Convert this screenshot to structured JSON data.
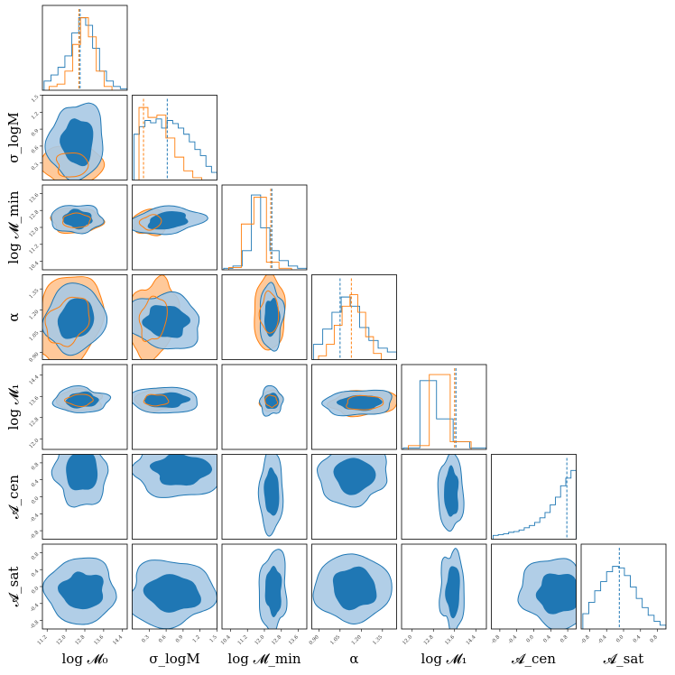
{
  "chart_data": {
    "type": "corner",
    "colors": {
      "blue": "#1f77b4",
      "blue_light": "#a9c9e4",
      "orange": "#ff7f0e",
      "orange_light": "#ffc99a"
    },
    "params": [
      {
        "label": "log 𝓜₀",
        "range": [
          11.0,
          14.6
        ],
        "ticks": [
          "11.2",
          "12.0",
          "12.8",
          "13.6",
          "14.4"
        ]
      },
      {
        "label": "σ_logM",
        "range": [
          0.0,
          1.5
        ],
        "ticks": [
          "0.3",
          "0.6",
          "0.9",
          "1.2",
          "1.5"
        ]
      },
      {
        "label": "log 𝓜_min",
        "range": [
          10.0,
          14.0
        ],
        "ticks": [
          "10.4",
          "11.2",
          "12.0",
          "12.8",
          "13.6"
        ]
      },
      {
        "label": "α",
        "range": [
          0.85,
          1.45
        ],
        "ticks": [
          "0.90",
          "1.05",
          "1.20",
          "1.35"
        ]
      },
      {
        "label": "log 𝓜₁",
        "range": [
          11.6,
          14.8
        ],
        "ticks": [
          "12.0",
          "12.8",
          "13.6",
          "14.4"
        ]
      },
      {
        "label": "𝓐_cen",
        "range": [
          -1.0,
          1.0
        ],
        "ticks": [
          "-0.8",
          "-0.4",
          "0.0",
          "0.4",
          "0.8"
        ]
      },
      {
        "label": "𝓐_sat",
        "range": [
          -1.0,
          1.0
        ],
        "ticks": [
          "-0.8",
          "-0.4",
          "0.0",
          "0.4",
          "0.8"
        ]
      }
    ],
    "medians": {
      "blue": [
        12.6,
        0.62,
        12.35,
        1.05,
        13.65,
        0.78,
        -0.1
      ],
      "orange": [
        12.55,
        0.2,
        12.3,
        1.13,
        13.6,
        null,
        null
      ]
    },
    "histograms": {
      "blue": [
        [
          0.12,
          0.2,
          0.3,
          0.45,
          0.75,
          0.95,
          0.85,
          0.55,
          0.25,
          0.12,
          0.05,
          0.02
        ],
        [
          0.6,
          0.7,
          0.78,
          0.75,
          0.8,
          0.68,
          0.78,
          0.74,
          0.68,
          0.6,
          0.5,
          0.4,
          0.32,
          0.18,
          0.1
        ],
        [
          0.02,
          0.05,
          0.25,
          0.98,
          0.55,
          0.25,
          0.12,
          0.05,
          0.02
        ],
        [
          0.2,
          0.4,
          0.62,
          0.82,
          0.7,
          0.42,
          0.25,
          0.15,
          0.1
        ],
        [
          0.02,
          0.9,
          0.4,
          0.1,
          0.02
        ],
        [
          0.05,
          0.06,
          0.07,
          0.09,
          0.1,
          0.12,
          0.15,
          0.18,
          0.22,
          0.28,
          0.35,
          0.45,
          0.55,
          0.7,
          0.8,
          0.9
        ],
        [
          0.2,
          0.35,
          0.5,
          0.62,
          0.75,
          0.82,
          0.8,
          0.7,
          0.55,
          0.4,
          0.28,
          0.18,
          0.1,
          0.05
        ]
      ],
      "orange": [
        [
          0.05,
          0.08,
          0.25,
          0.6,
          0.95,
          0.7,
          0.25,
          0.05
        ],
        [
          0.95,
          0.82,
          0.85,
          0.55,
          0.3,
          0.12,
          0.03
        ],
        [
          0.03,
          0.6,
          0.95,
          0.1,
          0.02
        ],
        [
          0.05,
          0.2,
          0.45,
          0.7,
          0.85,
          0.62,
          0.3,
          0.08
        ],
        [
          0.05,
          0.98,
          0.1
        ]
      ]
    }
  }
}
